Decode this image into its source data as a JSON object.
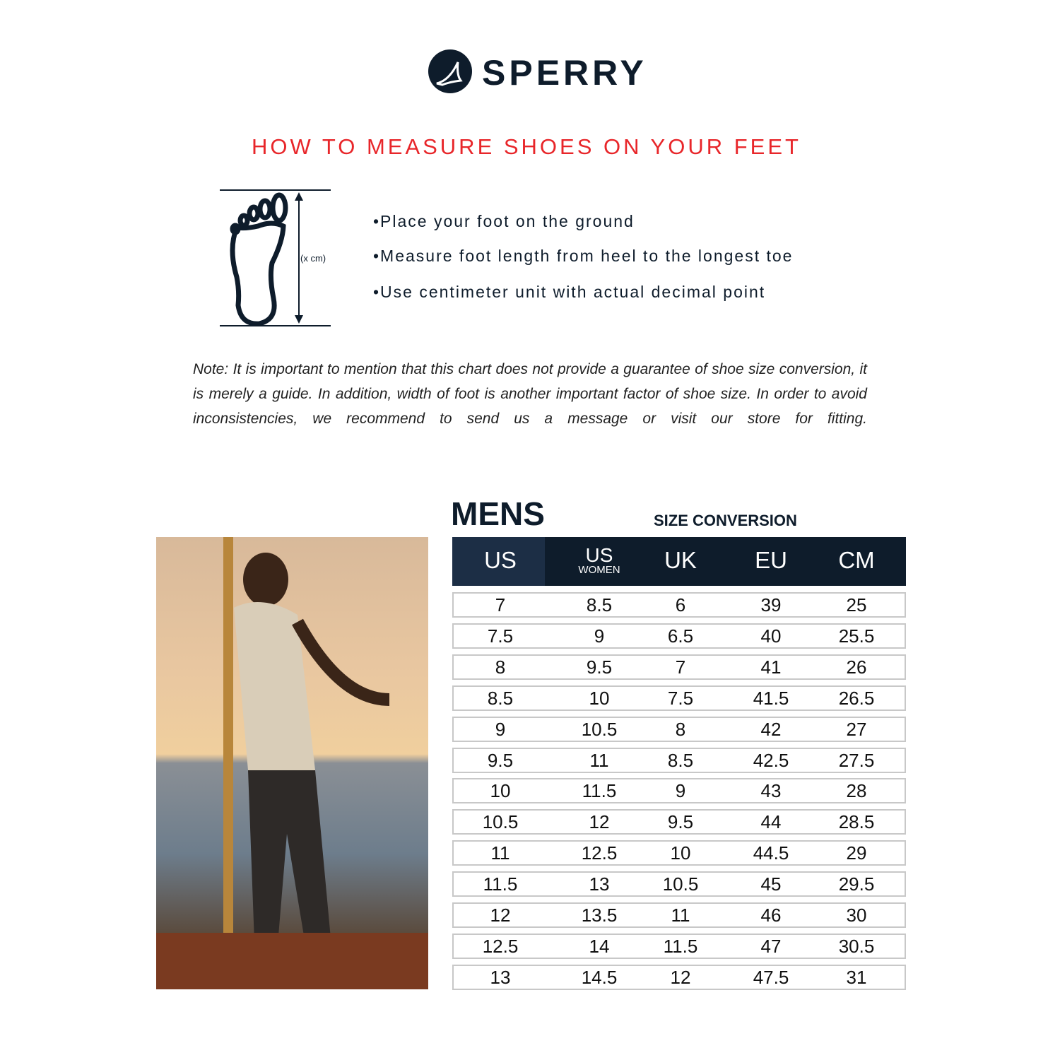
{
  "brand": {
    "name": "SPERRY"
  },
  "title": "HOW TO MEASURE SHOES ON YOUR FEET",
  "diagram": {
    "label": "(x cm)"
  },
  "steps": [
    "•Place your foot on the ground",
    "•Measure foot length from heel to the longest toe",
    "•Use centimeter unit with actual decimal point"
  ],
  "note": "Note: It is important to mention that this chart does not provide a guarantee of shoe size conversion, it is merely a guide. In addition, width of foot is another important factor of shoe size. In order to avoid inconsistencies, we recommend to send us a message or visit our store for fitting.",
  "table": {
    "heading": "MENS",
    "subheading": "SIZE CONVERSION",
    "columns": [
      "US",
      "US",
      "UK",
      "EU",
      "CM"
    ],
    "column_sub": "WOMEN",
    "rows": [
      [
        "7",
        "8.5",
        "6",
        "39",
        "25"
      ],
      [
        "7.5",
        "9",
        "6.5",
        "40",
        "25.5"
      ],
      [
        "8",
        "9.5",
        "7",
        "41",
        "26"
      ],
      [
        "8.5",
        "10",
        "7.5",
        "41.5",
        "26.5"
      ],
      [
        "9",
        "10.5",
        "8",
        "42",
        "27"
      ],
      [
        "9.5",
        "11",
        "8.5",
        "42.5",
        "27.5"
      ],
      [
        "10",
        "11.5",
        "9",
        "43",
        "28"
      ],
      [
        "10.5",
        "12",
        "9.5",
        "44",
        "28.5"
      ],
      [
        "11",
        "12.5",
        "10",
        "44.5",
        "29"
      ],
      [
        "11.5",
        "13",
        "10.5",
        "45",
        "29.5"
      ],
      [
        "12",
        "13.5",
        "11",
        "46",
        "30"
      ],
      [
        "12.5",
        "14",
        "11.5",
        "47",
        "30.5"
      ],
      [
        "13",
        "14.5",
        "12",
        "47.5",
        "31"
      ]
    ]
  },
  "colors": {
    "accent": "#e8262a",
    "navy": "#0e1c2b",
    "navy_light": "#1c2e45"
  }
}
